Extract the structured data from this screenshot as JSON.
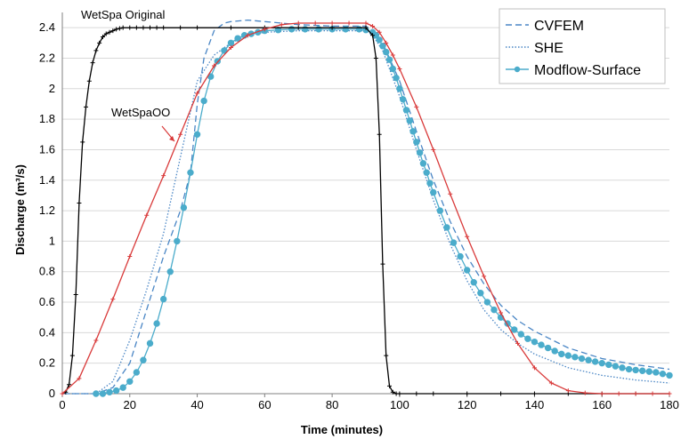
{
  "chart_data": {
    "type": "line",
    "xlabel": "Time (minutes)",
    "ylabel": "Discharge (m³/s)",
    "xlim": [
      0,
      180
    ],
    "ylim": [
      0,
      2.5
    ],
    "xticks": [
      "0",
      "20",
      "40",
      "60",
      "80",
      "100",
      "120",
      "140",
      "160",
      "180"
    ],
    "yticks": [
      "0",
      "0.2",
      "0.4",
      "0.6",
      "0.8",
      "1",
      "1.2",
      "1.4",
      "1.6",
      "1.8",
      "2",
      "2.2",
      "2.4"
    ],
    "grid": "y-major",
    "legend_position": "top-right",
    "annotations": [
      {
        "text": "WetSpa Original"
      },
      {
        "text": "WetSpaOO"
      }
    ],
    "series": [
      {
        "name": "CVFEM",
        "color": "#4a86c5",
        "style": "dashed",
        "x": [
          0,
          5,
          10,
          15,
          20,
          25,
          30,
          35,
          38,
          40,
          42,
          45,
          48,
          50,
          55,
          60,
          70,
          80,
          90,
          92,
          95,
          100,
          105,
          110,
          115,
          120,
          125,
          130,
          135,
          140,
          150,
          160,
          170,
          180
        ],
        "y": [
          0,
          0,
          0,
          0.04,
          0.2,
          0.55,
          0.9,
          1.2,
          1.45,
          1.9,
          2.2,
          2.38,
          2.43,
          2.44,
          2.45,
          2.44,
          2.42,
          2.41,
          2.41,
          2.38,
          2.3,
          2.05,
          1.72,
          1.4,
          1.13,
          0.9,
          0.72,
          0.58,
          0.48,
          0.41,
          0.3,
          0.23,
          0.19,
          0.16
        ]
      },
      {
        "name": "SHE",
        "color": "#4a86c5",
        "style": "dotted",
        "x": [
          0,
          5,
          10,
          15,
          20,
          25,
          30,
          35,
          38,
          40,
          45,
          50,
          55,
          60,
          70,
          80,
          90,
          92,
          95,
          100,
          105,
          110,
          115,
          120,
          125,
          130,
          135,
          140,
          150,
          160,
          170,
          180
        ],
        "y": [
          0,
          0,
          0,
          0.08,
          0.35,
          0.68,
          1.05,
          1.55,
          1.85,
          2.05,
          2.22,
          2.3,
          2.35,
          2.37,
          2.38,
          2.38,
          2.38,
          2.35,
          2.25,
          1.95,
          1.6,
          1.27,
          0.98,
          0.74,
          0.55,
          0.42,
          0.33,
          0.26,
          0.17,
          0.12,
          0.09,
          0.07
        ]
      },
      {
        "name": "Modflow-Surface",
        "color": "#4baccb",
        "style": "solid-markers",
        "x": [
          10,
          12,
          14,
          16,
          18,
          20,
          22,
          24,
          26,
          28,
          30,
          32,
          34,
          36,
          38,
          40,
          42,
          44,
          46,
          48,
          50,
          52,
          54,
          56,
          58,
          60,
          64,
          68,
          72,
          76,
          80,
          84,
          88,
          90,
          92,
          93,
          94,
          95,
          96,
          97,
          98,
          99,
          100,
          101,
          102,
          103,
          104,
          105,
          106,
          107,
          108,
          109,
          110,
          112,
          114,
          116,
          118,
          120,
          122,
          124,
          126,
          128,
          130,
          132,
          134,
          136,
          138,
          140,
          142,
          144,
          146,
          148,
          150,
          152,
          154,
          156,
          158,
          160,
          162,
          164,
          166,
          168,
          170,
          172,
          174,
          176,
          178,
          180
        ],
        "y": [
          0,
          0,
          0.01,
          0.02,
          0.04,
          0.08,
          0.14,
          0.22,
          0.33,
          0.46,
          0.62,
          0.8,
          1.0,
          1.22,
          1.45,
          1.7,
          1.92,
          2.08,
          2.18,
          2.25,
          2.3,
          2.33,
          2.35,
          2.36,
          2.37,
          2.38,
          2.385,
          2.39,
          2.39,
          2.39,
          2.39,
          2.39,
          2.39,
          2.385,
          2.37,
          2.35,
          2.32,
          2.28,
          2.24,
          2.19,
          2.13,
          2.07,
          2.0,
          1.93,
          1.86,
          1.79,
          1.72,
          1.65,
          1.58,
          1.51,
          1.45,
          1.38,
          1.32,
          1.2,
          1.09,
          0.99,
          0.9,
          0.81,
          0.73,
          0.66,
          0.6,
          0.55,
          0.5,
          0.46,
          0.42,
          0.39,
          0.36,
          0.34,
          0.32,
          0.3,
          0.28,
          0.26,
          0.25,
          0.24,
          0.23,
          0.22,
          0.21,
          0.2,
          0.19,
          0.18,
          0.17,
          0.16,
          0.155,
          0.15,
          0.145,
          0.14,
          0.13,
          0.12
        ]
      },
      {
        "name": "WetSpa Original",
        "color": "#000000",
        "style": "solid-plus",
        "x": [
          0,
          1,
          2,
          3,
          4,
          5,
          6,
          7,
          8,
          9,
          10,
          11,
          12,
          13,
          14,
          15,
          16,
          17,
          18,
          20,
          22,
          24,
          26,
          28,
          30,
          35,
          40,
          50,
          60,
          70,
          80,
          90,
          92,
          93,
          94,
          95,
          96,
          97,
          98,
          99,
          100,
          105,
          110,
          120,
          130,
          140,
          150,
          160,
          170,
          180
        ],
        "y": [
          0,
          0.01,
          0.06,
          0.25,
          0.65,
          1.25,
          1.65,
          1.88,
          2.05,
          2.17,
          2.25,
          2.3,
          2.34,
          2.36,
          2.37,
          2.38,
          2.39,
          2.395,
          2.4,
          2.4,
          2.4,
          2.4,
          2.4,
          2.4,
          2.4,
          2.4,
          2.4,
          2.4,
          2.4,
          2.4,
          2.4,
          2.4,
          2.35,
          2.2,
          1.7,
          0.85,
          0.25,
          0.05,
          0.01,
          0,
          0,
          0,
          0,
          0,
          0,
          0,
          0,
          0,
          0,
          0
        ]
      },
      {
        "name": "WetSpaOO",
        "color": "#d93a3a",
        "style": "solid-plus",
        "x": [
          0,
          5,
          10,
          15,
          20,
          25,
          30,
          35,
          40,
          45,
          50,
          55,
          60,
          65,
          70,
          75,
          80,
          85,
          90,
          92,
          94,
          96,
          98,
          100,
          105,
          110,
          115,
          120,
          125,
          130,
          135,
          140,
          145,
          150,
          155,
          160,
          165,
          170,
          175,
          180
        ],
        "y": [
          0,
          0.1,
          0.35,
          0.62,
          0.9,
          1.17,
          1.43,
          1.7,
          1.97,
          2.15,
          2.27,
          2.35,
          2.39,
          2.42,
          2.43,
          2.43,
          2.43,
          2.43,
          2.43,
          2.41,
          2.37,
          2.3,
          2.22,
          2.13,
          1.88,
          1.6,
          1.31,
          1.03,
          0.77,
          0.53,
          0.33,
          0.17,
          0.07,
          0.02,
          0.005,
          0,
          0,
          0,
          0,
          0
        ]
      }
    ]
  }
}
